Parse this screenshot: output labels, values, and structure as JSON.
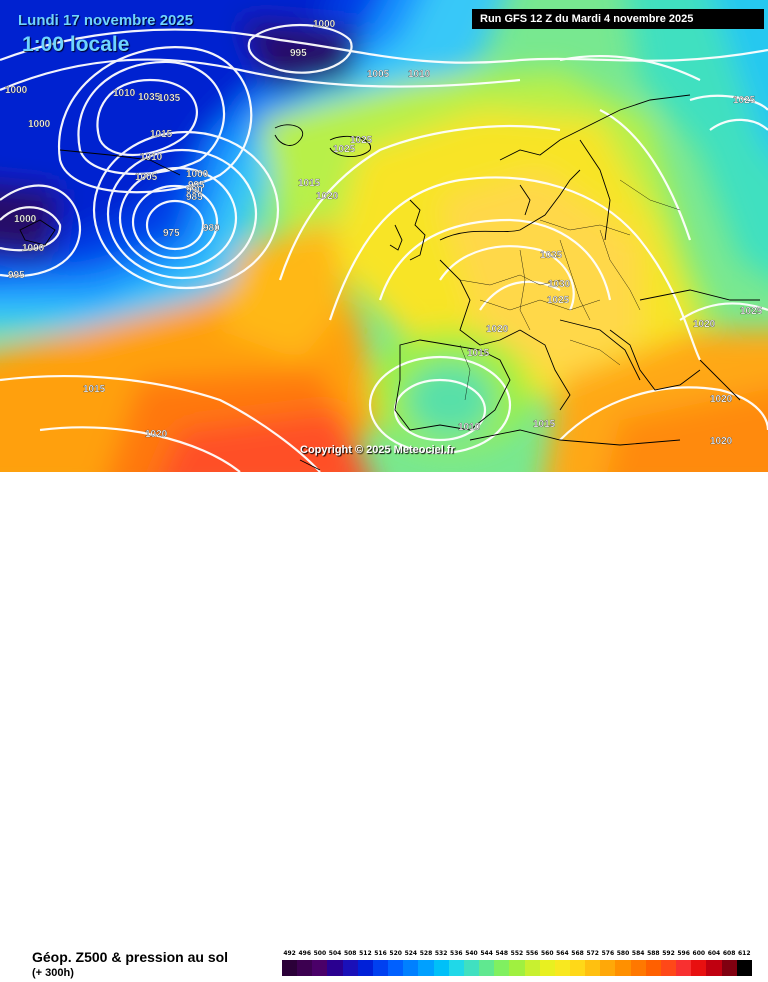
{
  "header": {
    "date": "Lundi 17 novembre 2025",
    "time": "1:00 locale",
    "run": "Run GFS 12 Z du Mardi 4 novembre 2025"
  },
  "copyright": "Copyright © 2025 Meteociel.fr",
  "footer": {
    "parameter": "Géop. Z500 & pression au sol",
    "lead_time": "(+ 300h)"
  },
  "legend": {
    "labels": [
      "492",
      "496",
      "500",
      "504",
      "508",
      "512",
      "516",
      "520",
      "524",
      "528",
      "532",
      "536",
      "540",
      "544",
      "548",
      "552",
      "556",
      "560",
      "564",
      "568",
      "572",
      "576",
      "580",
      "584",
      "588",
      "592",
      "596",
      "600",
      "604",
      "608",
      "612"
    ],
    "colors": [
      "#2b0038",
      "#3c0050",
      "#4a0068",
      "#2a0090",
      "#1a10b8",
      "#0020d8",
      "#0040f0",
      "#0060ff",
      "#0080ff",
      "#00a0ff",
      "#00c0f8",
      "#20d8e8",
      "#40e0c0",
      "#60e890",
      "#80f060",
      "#a0f040",
      "#c8f030",
      "#e8f020",
      "#f8e820",
      "#ffd818",
      "#ffc010",
      "#ffa808",
      "#ff9000",
      "#ff7800",
      "#ff6000",
      "#ff4818",
      "#f83030",
      "#e81010",
      "#c00010",
      "#800010",
      "#000000"
    ]
  },
  "pressure_labels": [
    "1000",
    "995",
    "1005",
    "1010",
    "1000",
    "1000",
    "1010",
    "1035",
    "1035",
    "1015",
    "1010",
    "1005",
    "1000",
    "995",
    "990",
    "985",
    "980",
    "975",
    "1025",
    "1025",
    "1015",
    "1020",
    "1000",
    "1000",
    "995",
    "1035",
    "1030",
    "1025",
    "1020",
    "1015",
    "1010",
    "1015",
    "1020",
    "1015",
    "1020",
    "1020",
    "1025",
    "1025",
    "1020"
  ],
  "colors": {
    "title_text": "#6fd4ff",
    "run_box": "#000000",
    "isobars": "#ffffff",
    "coastline": "#000000"
  }
}
